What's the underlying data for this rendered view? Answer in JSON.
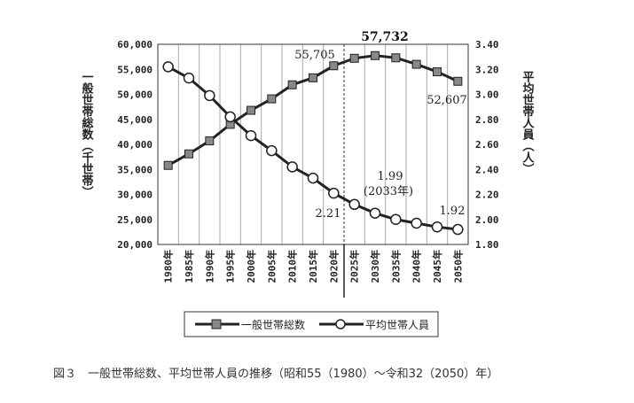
{
  "chart_data": {
    "type": "line",
    "x": [
      "1980年",
      "1985年",
      "1990年",
      "1995年",
      "2000年",
      "2005年",
      "2010年",
      "2015年",
      "2020年",
      "2025年",
      "2030年",
      "2035年",
      "2040年",
      "2045年",
      "2050年"
    ],
    "series": [
      {
        "name": "一般世帯総数",
        "axis": "left",
        "values": [
          35800,
          38100,
          40700,
          44000,
          46800,
          49100,
          51900,
          53300,
          55705,
          57200,
          57732,
          57300,
          56000,
          54500,
          52607
        ],
        "color": "#222222",
        "marker": "square"
      },
      {
        "name": "平均世帯人員",
        "axis": "right",
        "values": [
          3.22,
          3.13,
          2.99,
          2.82,
          2.67,
          2.55,
          2.42,
          2.33,
          2.21,
          2.12,
          2.05,
          2.0,
          1.97,
          1.94,
          1.92
        ],
        "color": "#222222",
        "marker": "circle"
      }
    ],
    "yleft": {
      "label": "一般世帯総数（千世帯）",
      "ylim": [
        20000,
        60000
      ],
      "ticks": [
        "20,000",
        "25,000",
        "30,000",
        "35,000",
        "40,000",
        "45,000",
        "50,000",
        "55,000",
        "60,000"
      ],
      "tick_values": [
        20000,
        25000,
        30000,
        35000,
        40000,
        45000,
        50000,
        55000,
        60000
      ]
    },
    "yright": {
      "label": "平均世帯人員（人）",
      "ylim": [
        1.8,
        3.4
      ],
      "ticks": [
        "1.80",
        "2.00",
        "2.20",
        "2.40",
        "2.60",
        "2.80",
        "3.00",
        "3.20",
        "3.40"
      ],
      "tick_values": [
        1.8,
        2.0,
        2.2,
        2.4,
        2.6,
        2.8,
        3.0,
        3.2,
        3.4
      ]
    },
    "annotations": {
      "a2020": "55,705",
      "a2030": "57,732",
      "a2050": "52,607",
      "b2020": "2.21",
      "b2033": "1.99",
      "b2033_sub": "(2033年)",
      "b2050": "1.92"
    },
    "grid": "vertical",
    "legend_position": "bottom",
    "divider_after": "2020年"
  },
  "caption": "図３　一般世帯総数、平均世帯人員の推移（昭和55（1980）～令和32（2050）年）"
}
